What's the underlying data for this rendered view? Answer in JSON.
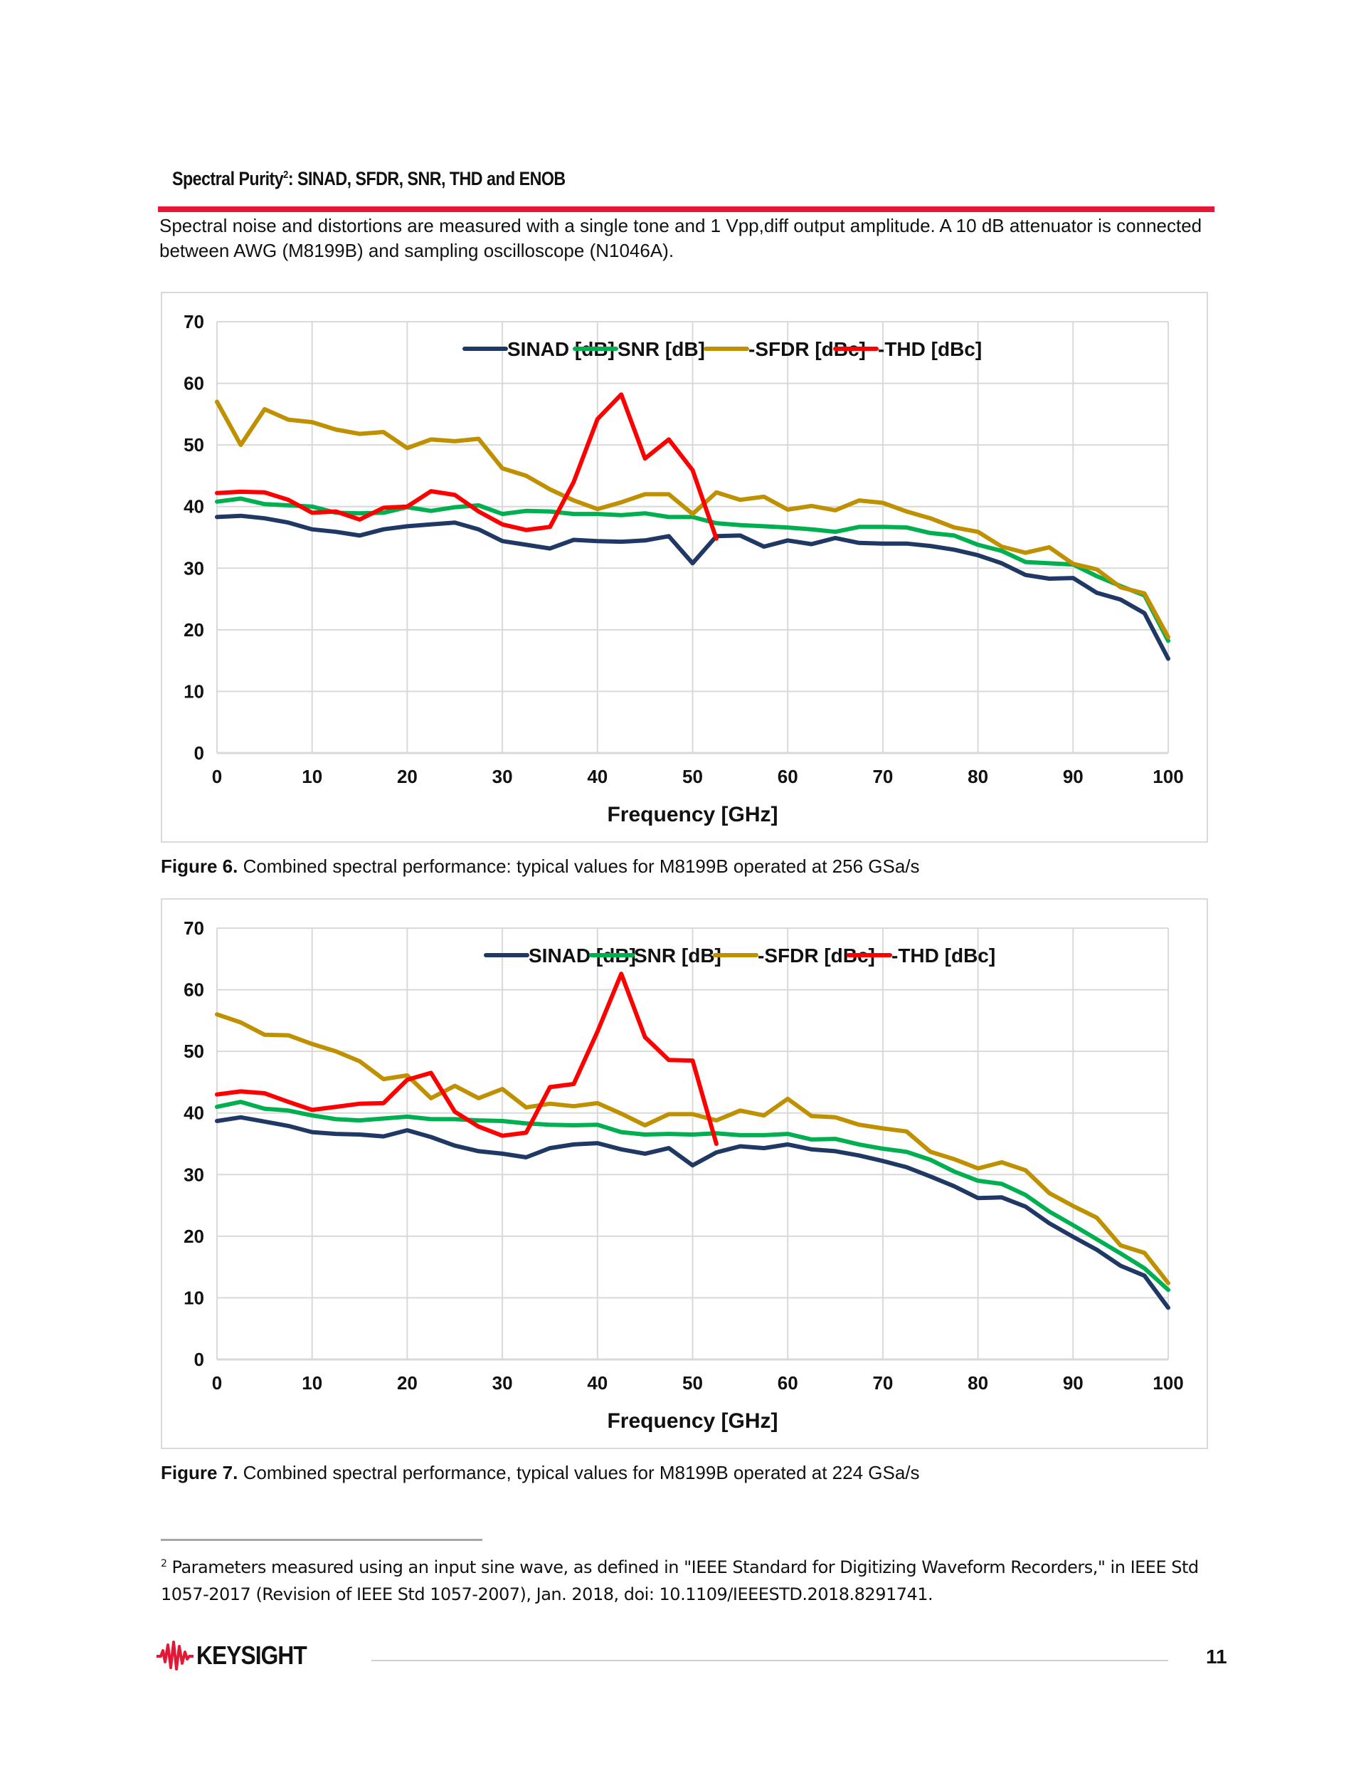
{
  "section": {
    "title": "Spectral Purity",
    "title_sup": "2",
    "title_rest": ": SINAD, SFDR, SNR, THD and ENOB",
    "intro": "Spectral noise and distortions are measured with a single tone and 1 Vpp,diff output amplitude. A 10 dB attenuator is connected between AWG (M8199B) and sampling oscilloscope (N1046A)."
  },
  "figures": [
    {
      "label": "Figure 6.",
      "text": " Combined spectral performance: typical values for M8199B operated at 256 GSa/s"
    },
    {
      "label": "Figure 7.",
      "text": " Combined spectral performance, typical values for M8199B operated at 224 GSa/s"
    }
  ],
  "footnote": {
    "marker": "2",
    "text": " Parameters measured using an input sine wave, as defined in \"IEEE Standard for Digitizing Waveform Recorders,\" in IEEE Std 1057-2017 (Revision of IEEE Std 1057-2007), Jan. 2018, doi: 10.1109/IEEESTD.2018.8291741."
  },
  "footer": {
    "brand": "KEYSIGHT",
    "page_number": "11"
  },
  "colors": {
    "sinad": "#1f3864",
    "snr": "#00b050",
    "sfdr": "#bf9000",
    "thd": "#ff0000",
    "accent_rule": "#e31837",
    "grid": "#d9d9d9"
  },
  "chart_data": [
    {
      "type": "line",
      "title": "",
      "xlabel": "Frequency [GHz]",
      "ylabel": "",
      "xlim": [
        0,
        100
      ],
      "ylim": [
        0,
        70
      ],
      "xticks": [
        "0",
        "10",
        "20",
        "30",
        "40",
        "50",
        "60",
        "70",
        "80",
        "90",
        "100"
      ],
      "yticks": [
        "0",
        "10",
        "20",
        "30",
        "40",
        "50",
        "60",
        "70"
      ],
      "grid": true,
      "legend": "top-right",
      "x": [
        0,
        2.5,
        5,
        7.5,
        10,
        12.5,
        15,
        17.5,
        20,
        22.5,
        25,
        27.5,
        30,
        32.5,
        35,
        37.5,
        40,
        42.5,
        45,
        47.5,
        50,
        52.5,
        55,
        57.5,
        60,
        62.5,
        65,
        67.5,
        70,
        72.5,
        75,
        77.5,
        80,
        82.5,
        85,
        87.5,
        90,
        92.5,
        95,
        97.5,
        100
      ],
      "series": [
        {
          "name": "SINAD [dB]",
          "values": [
            38.3,
            38.5,
            38.1,
            37.4,
            36.3,
            35.9,
            35.3,
            36.3,
            36.8,
            37.1,
            37.4,
            36.3,
            34.4,
            33.8,
            33.2,
            34.6,
            34.4,
            34.3,
            34.5,
            35.2,
            30.8,
            35.2,
            35.3,
            33.5,
            34.5,
            33.9,
            34.9,
            34.1,
            34.0,
            34.0,
            33.6,
            33.0,
            32.1,
            30.8,
            28.9,
            28.3,
            28.4,
            26.0,
            24.9,
            22.7,
            15.3
          ]
        },
        {
          "name": "SNR [dB]",
          "values": [
            40.8,
            41.3,
            40.4,
            40.2,
            40.0,
            39.0,
            38.9,
            39.0,
            39.9,
            39.3,
            39.9,
            40.2,
            38.8,
            39.3,
            39.2,
            38.8,
            38.8,
            38.6,
            38.9,
            38.3,
            38.3,
            37.3,
            37.0,
            36.8,
            36.6,
            36.3,
            35.9,
            36.7,
            36.7,
            36.6,
            35.7,
            35.3,
            33.8,
            32.8,
            31.0,
            30.8,
            30.6,
            28.7,
            27.1,
            25.6,
            18.2
          ]
        },
        {
          "name": "-SFDR [dBc]",
          "values": [
            57.0,
            50.0,
            55.8,
            54.1,
            53.7,
            52.5,
            51.8,
            52.1,
            49.5,
            50.9,
            50.6,
            51.0,
            46.2,
            45.0,
            42.8,
            41.0,
            39.6,
            40.7,
            42.0,
            42.0,
            38.8,
            42.3,
            41.1,
            41.6,
            39.5,
            40.1,
            39.4,
            41.0,
            40.6,
            39.2,
            38.1,
            36.6,
            35.9,
            33.5,
            32.5,
            33.4,
            30.7,
            29.8,
            26.9,
            25.9,
            18.8
          ]
        },
        {
          "name": "-THD [dBc]",
          "values": [
            42.2,
            42.4,
            42.3,
            41.1,
            39.0,
            39.2,
            37.9,
            39.8,
            40.0,
            42.5,
            41.9,
            39.2,
            37.1,
            36.2,
            36.7,
            44.0,
            54.2,
            58.2,
            47.8,
            50.9,
            45.9,
            34.8,
            null,
            null,
            null,
            null,
            null,
            null,
            null,
            null,
            null,
            null,
            null,
            null,
            null,
            null,
            null,
            null,
            null,
            null,
            null
          ]
        }
      ]
    },
    {
      "type": "line",
      "title": "",
      "xlabel": "Frequency [GHz]",
      "ylabel": "",
      "xlim": [
        0,
        100
      ],
      "ylim": [
        0,
        70
      ],
      "xticks": [
        "0",
        "10",
        "20",
        "30",
        "40",
        "50",
        "60",
        "70",
        "80",
        "90",
        "100"
      ],
      "yticks": [
        "0",
        "10",
        "20",
        "30",
        "40",
        "50",
        "60",
        "70"
      ],
      "grid": true,
      "legend": "top-right",
      "x": [
        0,
        2.5,
        5,
        7.5,
        10,
        12.5,
        15,
        17.5,
        20,
        22.5,
        25,
        27.5,
        30,
        32.5,
        35,
        37.5,
        40,
        42.5,
        45,
        47.5,
        50,
        52.5,
        55,
        57.5,
        60,
        62.5,
        65,
        67.5,
        70,
        72.5,
        75,
        77.5,
        80,
        82.5,
        85,
        87.5,
        90,
        92.5,
        95,
        97.5,
        100
      ],
      "series": [
        {
          "name": "SINAD [dB]",
          "values": [
            38.7,
            39.3,
            38.6,
            37.9,
            36.9,
            36.6,
            36.5,
            36.2,
            37.2,
            36.1,
            34.7,
            33.8,
            33.4,
            32.8,
            34.3,
            34.9,
            35.1,
            34.1,
            33.4,
            34.3,
            31.5,
            33.6,
            34.6,
            34.3,
            34.9,
            34.1,
            33.8,
            33.1,
            32.2,
            31.2,
            29.7,
            28.1,
            26.2,
            26.3,
            24.8,
            22.1,
            19.9,
            17.8,
            15.2,
            13.6,
            8.4
          ]
        },
        {
          "name": "SNR [dB]",
          "values": [
            41.0,
            41.8,
            40.7,
            40.4,
            39.6,
            39.0,
            38.8,
            39.1,
            39.4,
            39.0,
            39.0,
            38.8,
            38.7,
            38.3,
            38.1,
            38.0,
            38.1,
            36.9,
            36.5,
            36.6,
            36.5,
            36.7,
            36.4,
            36.4,
            36.6,
            35.7,
            35.8,
            34.9,
            34.2,
            33.7,
            32.4,
            30.5,
            29.0,
            28.5,
            26.7,
            24.0,
            21.8,
            19.5,
            17.2,
            14.8,
            11.3
          ]
        },
        {
          "name": "-SFDR [dBc]",
          "values": [
            56.0,
            54.7,
            52.7,
            52.6,
            51.2,
            50.0,
            48.4,
            45.5,
            46.1,
            42.4,
            44.4,
            42.4,
            43.9,
            40.9,
            41.5,
            41.1,
            41.6,
            39.9,
            38.0,
            39.8,
            39.8,
            38.8,
            40.4,
            39.6,
            42.3,
            39.5,
            39.3,
            38.1,
            37.5,
            37.0,
            33.7,
            32.5,
            31.0,
            32.0,
            30.7,
            27.0,
            24.9,
            23.0,
            18.5,
            17.3,
            12.4
          ]
        },
        {
          "name": "-THD [dBc]",
          "values": [
            43.0,
            43.5,
            43.2,
            41.8,
            40.5,
            41.0,
            41.5,
            41.6,
            45.4,
            46.5,
            40.2,
            37.8,
            36.3,
            36.8,
            44.2,
            44.7,
            53.2,
            62.6,
            52.3,
            48.6,
            48.5,
            35.0,
            null,
            null,
            null,
            null,
            null,
            null,
            null,
            null,
            null,
            null,
            null,
            null,
            null,
            null,
            null,
            null,
            null,
            null,
            null
          ]
        }
      ]
    }
  ]
}
